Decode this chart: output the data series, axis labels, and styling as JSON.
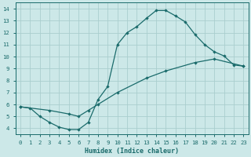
{
  "xlabel": "Humidex (Indice chaleur)",
  "bg_color": "#cce8e8",
  "line_color": "#1a6b6b",
  "grid_color": "#aacece",
  "xlim": [
    -0.5,
    23.5
  ],
  "ylim": [
    3.5,
    14.5
  ],
  "xticks": [
    0,
    1,
    2,
    3,
    4,
    5,
    6,
    7,
    8,
    9,
    10,
    11,
    12,
    13,
    14,
    15,
    16,
    17,
    18,
    19,
    20,
    21,
    22,
    23
  ],
  "yticks": [
    4,
    5,
    6,
    7,
    8,
    9,
    10,
    11,
    12,
    13,
    14
  ],
  "upper_x": [
    0,
    1,
    2,
    3,
    4,
    5,
    6,
    7,
    8,
    9,
    10,
    11,
    12,
    13,
    14,
    15,
    16,
    17,
    18,
    19,
    20,
    21,
    22,
    23
  ],
  "upper_y": [
    5.8,
    5.7,
    5.0,
    4.5,
    4.1,
    3.9,
    3.9,
    4.5,
    6.4,
    7.5,
    11.0,
    12.0,
    12.5,
    13.2,
    13.85,
    13.85,
    13.4,
    12.9,
    11.85,
    11.0,
    10.4,
    10.05,
    9.3,
    9.2
  ],
  "lower_x": [
    0,
    3,
    5,
    6,
    7,
    8,
    10,
    13,
    15,
    18,
    20,
    23
  ],
  "lower_y": [
    5.8,
    5.5,
    5.2,
    5.0,
    5.5,
    6.0,
    7.0,
    8.2,
    8.8,
    9.5,
    9.8,
    9.2
  ],
  "xlabel_fontsize": 6.0,
  "tick_fontsize": 5.2,
  "marker_size": 2.2,
  "line_width": 0.9
}
